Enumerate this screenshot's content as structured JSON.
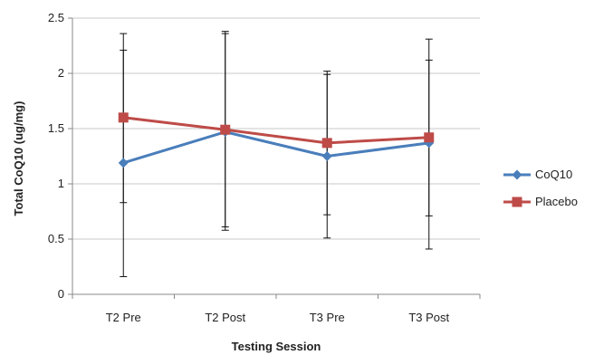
{
  "chart_data": {
    "type": "line",
    "title": "",
    "xlabel": "Testing Session",
    "ylabel": "Total CoQ10 (ug/mg)",
    "ylim": [
      0,
      2.5
    ],
    "yticks": [
      "0",
      "0.5",
      "1",
      "1.5",
      "2",
      "2.5"
    ],
    "grid": true,
    "legend_position": "right",
    "categories": [
      "T2 Pre",
      "T2 Post",
      "T3 Pre",
      "T3 Post"
    ],
    "series": [
      {
        "name": "CoQ10",
        "color": "#4a7ebb",
        "marker": "diamond",
        "values": [
          1.19,
          1.47,
          1.25,
          1.37
        ],
        "error_low": [
          0.16,
          0.58,
          0.51,
          0.41
        ],
        "error_high": [
          2.21,
          2.36,
          1.99,
          2.12
        ]
      },
      {
        "name": "Placebo",
        "color": "#be4b48",
        "marker": "square",
        "values": [
          1.6,
          1.49,
          1.37,
          1.42
        ],
        "error_low": [
          0.83,
          0.61,
          0.72,
          0.71
        ],
        "error_high": [
          2.36,
          2.38,
          2.02,
          2.31
        ]
      }
    ]
  }
}
